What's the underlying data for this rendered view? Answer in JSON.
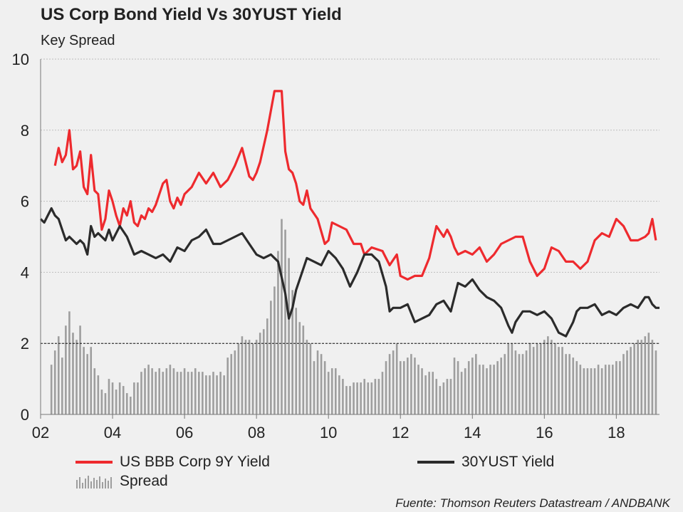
{
  "title": "US Corp Bond Yield Vs 30YUST Yield",
  "subtitle": "Key Spread",
  "source": "Fuente: Thomson Reuters Datastream / ANDBANK",
  "colors": {
    "bbb": "#ee2a2e",
    "ust": "#2b2b2b",
    "spread": "#9e9e9e",
    "grid": "#bdbdbd"
  },
  "legend": {
    "bbb": "US BBB Corp 9Y Yield",
    "ust": "30YUST Yield",
    "spread": "Spread"
  },
  "chart_data": {
    "type": "line",
    "title": "US Corp Bond Yield Vs 30YUST Yield",
    "subtitle": "Key Spread",
    "xlim": [
      2002,
      2019.2
    ],
    "ylim": [
      0,
      10
    ],
    "xticks": [
      2002,
      2004,
      2006,
      2008,
      2010,
      2012,
      2014,
      2016,
      2018
    ],
    "xtick_labels": [
      "02",
      "04",
      "06",
      "08",
      "10",
      "12",
      "14",
      "16",
      "18"
    ],
    "yticks": [
      0,
      2,
      4,
      6,
      8,
      10
    ],
    "ytick_labels": [
      "0",
      "2",
      "4",
      "6",
      "8",
      "10"
    ],
    "grid": "horizontal dotted",
    "reference_line": {
      "y": 2,
      "style": "dashed"
    },
    "legend_position": "bottom",
    "series": [
      {
        "name": "US BBB Corp 9Y Yield",
        "type": "line",
        "x": [
          2002.4,
          2002.5,
          2002.6,
          2002.7,
          2002.8,
          2002.9,
          2003.0,
          2003.1,
          2003.2,
          2003.3,
          2003.4,
          2003.5,
          2003.6,
          2003.7,
          2003.8,
          2003.9,
          2004.0,
          2004.1,
          2004.2,
          2004.3,
          2004.4,
          2004.5,
          2004.6,
          2004.7,
          2004.8,
          2004.9,
          2005.0,
          2005.1,
          2005.2,
          2005.3,
          2005.4,
          2005.5,
          2005.6,
          2005.7,
          2005.8,
          2005.9,
          2006.0,
          2006.2,
          2006.4,
          2006.6,
          2006.8,
          2007.0,
          2007.2,
          2007.4,
          2007.6,
          2007.8,
          2007.9,
          2008.0,
          2008.1,
          2008.3,
          2008.5,
          2008.7,
          2008.8,
          2008.9,
          2009.0,
          2009.1,
          2009.2,
          2009.3,
          2009.4,
          2009.5,
          2009.7,
          2009.9,
          2010.0,
          2010.1,
          2010.3,
          2010.5,
          2010.7,
          2010.9,
          2011.0,
          2011.2,
          2011.5,
          2011.7,
          2011.9,
          2012.0,
          2012.2,
          2012.4,
          2012.6,
          2012.8,
          2013.0,
          2013.2,
          2013.3,
          2013.4,
          2013.5,
          2013.6,
          2013.8,
          2014.0,
          2014.2,
          2014.4,
          2014.6,
          2014.8,
          2015.0,
          2015.2,
          2015.4,
          2015.6,
          2015.8,
          2016.0,
          2016.2,
          2016.4,
          2016.6,
          2016.8,
          2016.9,
          2017.0,
          2017.2,
          2017.4,
          2017.6,
          2017.8,
          2018.0,
          2018.2,
          2018.4,
          2018.6,
          2018.8,
          2018.9,
          2019.0,
          2019.1
        ],
        "y": [
          7.0,
          7.5,
          7.1,
          7.3,
          8.0,
          6.9,
          7.0,
          7.4,
          6.4,
          6.2,
          7.3,
          6.3,
          6.2,
          5.2,
          5.5,
          6.3,
          6.0,
          5.6,
          5.3,
          5.8,
          5.6,
          6.0,
          5.4,
          5.3,
          5.6,
          5.5,
          5.8,
          5.7,
          5.9,
          6.2,
          6.5,
          6.6,
          6.0,
          5.8,
          6.1,
          5.9,
          6.2,
          6.4,
          6.8,
          6.5,
          6.8,
          6.4,
          6.6,
          7.0,
          7.5,
          6.7,
          6.6,
          6.8,
          7.1,
          8.0,
          9.1,
          9.1,
          7.4,
          6.9,
          6.8,
          6.5,
          6.0,
          5.9,
          6.3,
          5.8,
          5.5,
          4.8,
          4.9,
          5.4,
          5.3,
          5.2,
          4.8,
          4.8,
          4.5,
          4.7,
          4.6,
          4.2,
          4.5,
          3.9,
          3.8,
          3.9,
          3.9,
          4.4,
          5.3,
          5.0,
          5.2,
          5.0,
          4.7,
          4.5,
          4.6,
          4.5,
          4.7,
          4.3,
          4.5,
          4.8,
          4.9,
          5.0,
          5.0,
          4.3,
          3.9,
          4.1,
          4.7,
          4.6,
          4.3,
          4.3,
          4.2,
          4.1,
          4.3,
          4.9,
          5.1,
          5.0,
          5.5,
          5.3,
          4.9,
          4.9,
          5.0,
          5.1,
          5.5,
          4.9
        ]
      },
      {
        "name": "30YUST Yield",
        "type": "line",
        "x": [
          2002.0,
          2002.1,
          2002.2,
          2002.3,
          2002.4,
          2002.5,
          2002.6,
          2002.7,
          2002.8,
          2002.9,
          2003.0,
          2003.1,
          2003.2,
          2003.3,
          2003.4,
          2003.5,
          2003.6,
          2003.7,
          2003.8,
          2003.9,
          2004.0,
          2004.2,
          2004.4,
          2004.6,
          2004.8,
          2005.0,
          2005.2,
          2005.4,
          2005.6,
          2005.8,
          2006.0,
          2006.2,
          2006.4,
          2006.6,
          2006.8,
          2007.0,
          2007.2,
          2007.4,
          2007.6,
          2007.8,
          2008.0,
          2008.2,
          2008.4,
          2008.6,
          2008.8,
          2008.9,
          2009.0,
          2009.1,
          2009.2,
          2009.4,
          2009.6,
          2009.8,
          2010.0,
          2010.2,
          2010.4,
          2010.6,
          2010.8,
          2011.0,
          2011.2,
          2011.4,
          2011.6,
          2011.7,
          2011.8,
          2012.0,
          2012.2,
          2012.4,
          2012.6,
          2012.8,
          2013.0,
          2013.2,
          2013.4,
          2013.6,
          2013.8,
          2014.0,
          2014.2,
          2014.4,
          2014.6,
          2014.8,
          2015.0,
          2015.1,
          2015.2,
          2015.4,
          2015.6,
          2015.8,
          2016.0,
          2016.2,
          2016.4,
          2016.6,
          2016.8,
          2016.9,
          2017.0,
          2017.2,
          2017.4,
          2017.6,
          2017.8,
          2018.0,
          2018.2,
          2018.4,
          2018.6,
          2018.8,
          2018.9,
          2019.0,
          2019.1,
          2019.2
        ],
        "y": [
          5.5,
          5.4,
          5.6,
          5.8,
          5.6,
          5.5,
          5.2,
          4.9,
          5.0,
          4.9,
          4.8,
          4.9,
          4.8,
          4.5,
          5.3,
          5.0,
          5.1,
          5.0,
          4.9,
          5.2,
          4.9,
          5.3,
          5.0,
          4.5,
          4.6,
          4.5,
          4.4,
          4.5,
          4.3,
          4.7,
          4.6,
          4.9,
          5.0,
          5.2,
          4.8,
          4.8,
          4.9,
          5.0,
          5.1,
          4.8,
          4.5,
          4.4,
          4.5,
          4.3,
          3.4,
          2.7,
          3.0,
          3.5,
          3.8,
          4.4,
          4.3,
          4.2,
          4.6,
          4.4,
          4.1,
          3.6,
          4.0,
          4.5,
          4.5,
          4.3,
          3.6,
          2.9,
          3.0,
          3.0,
          3.1,
          2.6,
          2.7,
          2.8,
          3.1,
          3.2,
          2.9,
          3.7,
          3.6,
          3.8,
          3.5,
          3.3,
          3.2,
          3.0,
          2.5,
          2.3,
          2.6,
          2.9,
          2.9,
          2.8,
          2.9,
          2.7,
          2.3,
          2.2,
          2.6,
          2.9,
          3.0,
          3.0,
          3.1,
          2.8,
          2.9,
          2.8,
          3.0,
          3.1,
          3.0,
          3.3,
          3.3,
          3.1,
          3.0,
          3.0
        ]
      },
      {
        "name": "Spread",
        "type": "bar",
        "x": [
          2002.3,
          2002.4,
          2002.5,
          2002.6,
          2002.7,
          2002.8,
          2002.9,
          2003.0,
          2003.1,
          2003.2,
          2003.3,
          2003.4,
          2003.5,
          2003.6,
          2003.7,
          2003.8,
          2003.9,
          2004.0,
          2004.1,
          2004.2,
          2004.3,
          2004.4,
          2004.5,
          2004.6,
          2004.7,
          2004.8,
          2004.9,
          2005.0,
          2005.1,
          2005.2,
          2005.3,
          2005.4,
          2005.5,
          2005.6,
          2005.7,
          2005.8,
          2005.9,
          2006.0,
          2006.1,
          2006.2,
          2006.3,
          2006.4,
          2006.5,
          2006.6,
          2006.7,
          2006.8,
          2006.9,
          2007.0,
          2007.1,
          2007.2,
          2007.3,
          2007.4,
          2007.5,
          2007.6,
          2007.7,
          2007.8,
          2007.9,
          2008.0,
          2008.1,
          2008.2,
          2008.3,
          2008.4,
          2008.5,
          2008.6,
          2008.7,
          2008.8,
          2008.9,
          2009.0,
          2009.1,
          2009.2,
          2009.3,
          2009.4,
          2009.5,
          2009.6,
          2009.7,
          2009.8,
          2009.9,
          2010.0,
          2010.1,
          2010.2,
          2010.3,
          2010.4,
          2010.5,
          2010.6,
          2010.7,
          2010.8,
          2010.9,
          2011.0,
          2011.1,
          2011.2,
          2011.3,
          2011.4,
          2011.5,
          2011.6,
          2011.7,
          2011.8,
          2011.9,
          2012.0,
          2012.1,
          2012.2,
          2012.3,
          2012.4,
          2012.5,
          2012.6,
          2012.7,
          2012.8,
          2012.9,
          2013.0,
          2013.1,
          2013.2,
          2013.3,
          2013.4,
          2013.5,
          2013.6,
          2013.7,
          2013.8,
          2013.9,
          2014.0,
          2014.1,
          2014.2,
          2014.3,
          2014.4,
          2014.5,
          2014.6,
          2014.7,
          2014.8,
          2014.9,
          2015.0,
          2015.1,
          2015.2,
          2015.3,
          2015.4,
          2015.5,
          2015.6,
          2015.7,
          2015.8,
          2015.9,
          2016.0,
          2016.1,
          2016.2,
          2016.3,
          2016.4,
          2016.5,
          2016.6,
          2016.7,
          2016.8,
          2016.9,
          2017.0,
          2017.1,
          2017.2,
          2017.3,
          2017.4,
          2017.5,
          2017.6,
          2017.7,
          2017.8,
          2017.9,
          2018.0,
          2018.1,
          2018.2,
          2018.3,
          2018.4,
          2018.5,
          2018.6,
          2018.7,
          2018.8,
          2018.9,
          2019.0,
          2019.1
        ],
        "y": [
          1.4,
          1.8,
          2.2,
          1.6,
          2.5,
          2.9,
          2.3,
          2.1,
          2.5,
          1.9,
          1.7,
          1.9,
          1.3,
          1.1,
          0.7,
          0.6,
          1.0,
          0.9,
          0.7,
          0.9,
          0.8,
          0.6,
          0.5,
          0.9,
          0.9,
          1.2,
          1.3,
          1.4,
          1.3,
          1.2,
          1.3,
          1.2,
          1.3,
          1.4,
          1.3,
          1.2,
          1.2,
          1.3,
          1.2,
          1.2,
          1.3,
          1.2,
          1.2,
          1.1,
          1.1,
          1.2,
          1.1,
          1.2,
          1.1,
          1.6,
          1.7,
          1.8,
          2.0,
          2.2,
          2.1,
          2.1,
          2.0,
          2.1,
          2.3,
          2.4,
          2.7,
          3.2,
          3.6,
          4.6,
          5.5,
          5.2,
          4.4,
          3.5,
          3.0,
          2.6,
          2.5,
          2.1,
          2.0,
          1.5,
          1.8,
          1.7,
          1.5,
          1.2,
          1.3,
          1.3,
          1.1,
          1.0,
          0.8,
          0.8,
          0.9,
          0.9,
          0.9,
          1.0,
          0.9,
          0.9,
          1.0,
          1.0,
          1.2,
          1.5,
          1.7,
          1.8,
          2.0,
          1.5,
          1.5,
          1.6,
          1.7,
          1.6,
          1.4,
          1.3,
          1.1,
          1.2,
          1.2,
          1.0,
          0.8,
          0.9,
          1.0,
          1.0,
          1.6,
          1.5,
          1.2,
          1.3,
          1.5,
          1.6,
          1.7,
          1.4,
          1.4,
          1.3,
          1.4,
          1.4,
          1.5,
          1.6,
          1.7,
          2.0,
          2.0,
          1.8,
          1.7,
          1.7,
          1.8,
          2.0,
          1.9,
          2.0,
          2.0,
          2.1,
          2.2,
          2.1,
          2.0,
          1.9,
          1.9,
          1.7,
          1.7,
          1.6,
          1.5,
          1.4,
          1.3,
          1.3,
          1.3,
          1.3,
          1.4,
          1.3,
          1.4,
          1.4,
          1.4,
          1.5,
          1.5,
          1.7,
          1.8,
          1.9,
          2.0,
          2.1,
          2.1,
          2.2,
          2.3,
          2.1,
          1.8
        ]
      }
    ]
  }
}
